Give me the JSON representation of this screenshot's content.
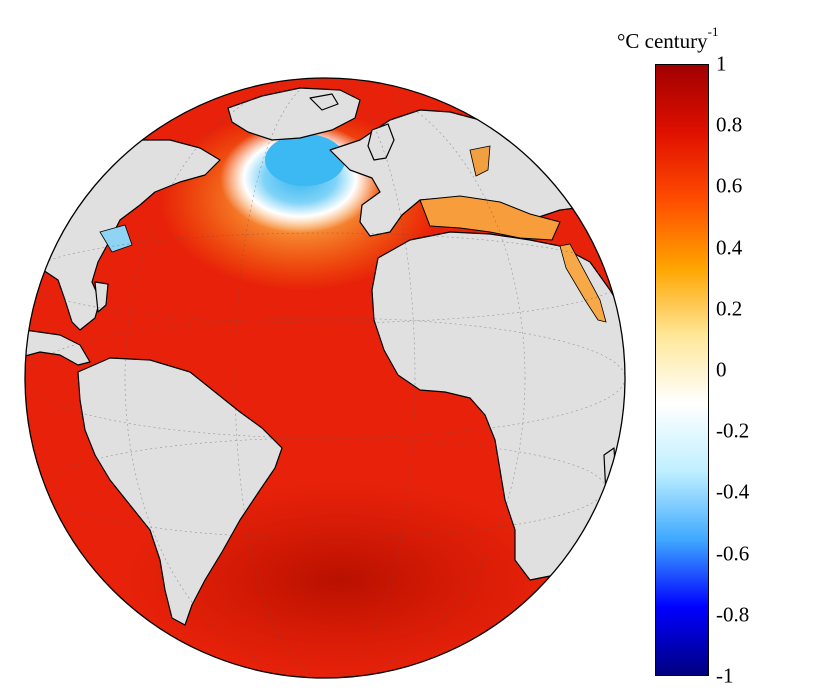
{
  "colorbar": {
    "unit_base": "°C century",
    "unit_exponent": "-1",
    "ticks": [
      {
        "value": 1,
        "label": "1"
      },
      {
        "value": 0.8,
        "label": "0.8"
      },
      {
        "value": 0.6,
        "label": "0.6"
      },
      {
        "value": 0.4,
        "label": "0.4"
      },
      {
        "value": 0.2,
        "label": "0.2"
      },
      {
        "value": 0,
        "label": "0"
      },
      {
        "value": -0.2,
        "label": "-0.2"
      },
      {
        "value": -0.4,
        "label": "-0.4"
      },
      {
        "value": -0.6,
        "label": "-0.6"
      },
      {
        "value": -0.8,
        "label": "-0.8"
      },
      {
        "value": -1,
        "label": "-1"
      }
    ],
    "range": [
      -1,
      1
    ],
    "colormap": [
      "#00007f",
      "#0000ff",
      "#3fa9ff",
      "#bfefff",
      "#ffffff",
      "#ffe79a",
      "#ffa500",
      "#ff4d00",
      "#e01000",
      "#a00000"
    ]
  },
  "map": {
    "projection": "orthographic",
    "center": "Atlantic Ocean",
    "ocean_color": "#e8220a",
    "land_color": "#e0e0e0",
    "cooling_patch_color": "#39b5f0"
  }
}
